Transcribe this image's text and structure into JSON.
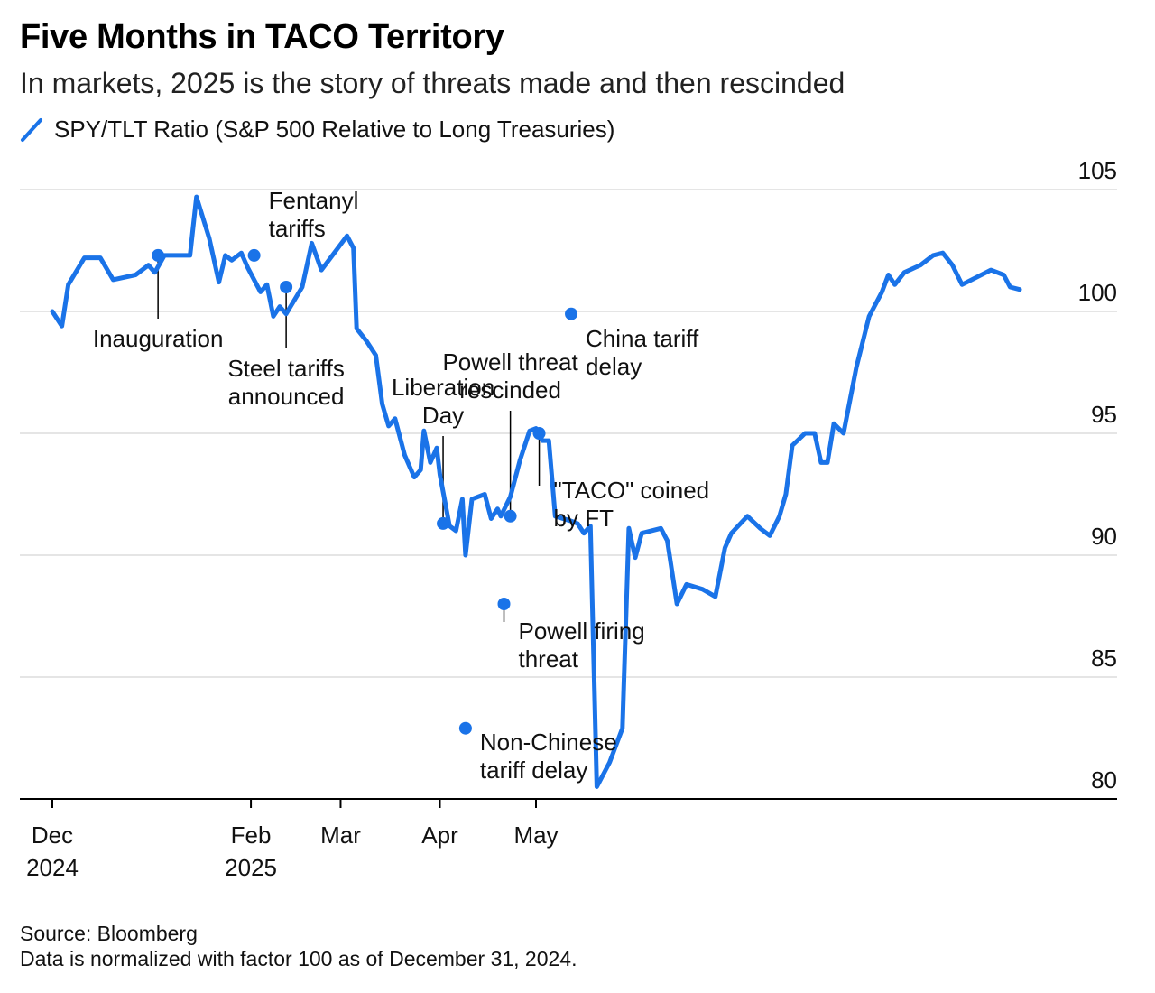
{
  "title": "Five Months in TACO Territory",
  "subtitle": "In markets, 2025 is the story of threats made and then rescinded",
  "legend_label": "SPY/TLT Ratio (S&P 500 Relative to Long Treasuries)",
  "source_line1": "Source: Bloomberg",
  "source_line2": "Data is normalized with factor 100 as of December 31, 2024.",
  "colors": {
    "line": "#1a73e8",
    "grid": "#e5e5e5",
    "axis": "#000000"
  },
  "chart_data": {
    "type": "line",
    "title": "Five Months in TACO Territory",
    "subtitle": "In markets, 2025 is the story of threats made and then rescinded",
    "ylabel": "",
    "ylim": [
      80,
      105
    ],
    "y_ticks": [
      80,
      85,
      90,
      95,
      100,
      105
    ],
    "y_position": "right",
    "grid": true,
    "x_ticks": [
      {
        "date": "2024-12-01",
        "line1": "Dec",
        "line2": "2024"
      },
      {
        "date": "2025-02-01",
        "line1": "Feb",
        "line2": "2025"
      },
      {
        "date": "2025-03-01",
        "line1": "Mar",
        "line2": ""
      },
      {
        "date": "2025-04-01",
        "line1": "Apr",
        "line2": ""
      },
      {
        "date": "2025-05-01",
        "line1": "May",
        "line2": ""
      }
    ],
    "series": [
      {
        "name": "SPY/TLT Ratio (S&P 500 Relative to Long Treasuries)",
        "points": [
          [
            "2024-12-01",
            100.0
          ],
          [
            "2024-12-04",
            99.4
          ],
          [
            "2024-12-06",
            101.1
          ],
          [
            "2024-12-11",
            102.2
          ],
          [
            "2024-12-16",
            102.2
          ],
          [
            "2024-12-20",
            101.3
          ],
          [
            "2024-12-27",
            101.5
          ],
          [
            "2024-12-31",
            101.9
          ],
          [
            "2025-01-02",
            101.6
          ],
          [
            "2025-01-05",
            102.3
          ],
          [
            "2025-01-08",
            102.3
          ],
          [
            "2025-01-13",
            102.3
          ],
          [
            "2025-01-15",
            104.7
          ],
          [
            "2025-01-19",
            103.0
          ],
          [
            "2025-01-22",
            101.2
          ],
          [
            "2025-01-24",
            102.3
          ],
          [
            "2025-01-26",
            102.1
          ],
          [
            "2025-01-29",
            102.4
          ],
          [
            "2025-01-31",
            101.8
          ],
          [
            "2025-02-04",
            100.8
          ],
          [
            "2025-02-06",
            101.1
          ],
          [
            "2025-02-08",
            99.8
          ],
          [
            "2025-02-10",
            100.2
          ],
          [
            "2025-02-12",
            99.9
          ],
          [
            "2025-02-17",
            101.0
          ],
          [
            "2025-02-20",
            102.8
          ],
          [
            "2025-02-23",
            101.7
          ],
          [
            "2025-02-27",
            102.4
          ],
          [
            "2025-03-03",
            103.1
          ],
          [
            "2025-03-05",
            102.6
          ],
          [
            "2025-03-06",
            99.3
          ],
          [
            "2025-03-09",
            98.8
          ],
          [
            "2025-03-12",
            98.2
          ],
          [
            "2025-03-14",
            96.2
          ],
          [
            "2025-03-16",
            95.3
          ],
          [
            "2025-03-18",
            95.6
          ],
          [
            "2025-03-21",
            94.1
          ],
          [
            "2025-03-24",
            93.2
          ],
          [
            "2025-03-26",
            93.5
          ],
          [
            "2025-03-27",
            95.1
          ],
          [
            "2025-03-29",
            93.8
          ],
          [
            "2025-03-31",
            94.4
          ],
          [
            "2025-04-01",
            93.3
          ],
          [
            "2025-04-04",
            91.2
          ],
          [
            "2025-04-06",
            91.0
          ],
          [
            "2025-04-08",
            92.3
          ],
          [
            "2025-04-09",
            90.0
          ],
          [
            "2025-04-11",
            92.3
          ],
          [
            "2025-04-15",
            92.5
          ],
          [
            "2025-04-17",
            91.5
          ],
          [
            "2025-04-19",
            91.9
          ],
          [
            "2025-04-20",
            91.6
          ],
          [
            "2025-04-23",
            92.4
          ],
          [
            "2025-04-26",
            93.9
          ],
          [
            "2025-04-29",
            95.1
          ],
          [
            "2025-05-01",
            95.2
          ],
          [
            "2025-05-03",
            94.7
          ],
          [
            "2025-05-05",
            94.7
          ],
          [
            "2025-05-07",
            91.6
          ],
          [
            "2025-05-12",
            91.4
          ],
          [
            "2025-05-14",
            91.3
          ],
          [
            "2025-05-16",
            90.9
          ],
          [
            "2025-05-18",
            91.2
          ],
          [
            "2025-05-20",
            80.5
          ],
          [
            "2025-05-24",
            81.5
          ],
          [
            "2025-05-28",
            82.9
          ],
          [
            "2025-05-30",
            91.1
          ],
          [
            "2025-06-01",
            89.9
          ],
          [
            "2025-06-03",
            90.9
          ],
          [
            "2025-06-09",
            91.1
          ],
          [
            "2025-06-11",
            90.6
          ],
          [
            "2025-06-14",
            88.0
          ],
          [
            "2025-06-17",
            88.8
          ],
          [
            "2025-06-22",
            88.6
          ],
          [
            "2025-06-26",
            88.3
          ],
          [
            "2025-06-29",
            90.3
          ],
          [
            "2025-07-01",
            90.9
          ],
          [
            "2025-07-06",
            91.6
          ],
          [
            "2025-07-10",
            91.1
          ],
          [
            "2025-07-13",
            90.8
          ],
          [
            "2025-07-16",
            91.6
          ],
          [
            "2025-07-18",
            92.5
          ],
          [
            "2025-07-20",
            94.5
          ],
          [
            "2025-07-24",
            95.0
          ],
          [
            "2025-07-27",
            95.0
          ],
          [
            "2025-07-29",
            93.8
          ],
          [
            "2025-07-31",
            93.8
          ],
          [
            "2025-08-02",
            95.4
          ],
          [
            "2025-08-05",
            95.0
          ],
          [
            "2025-08-09",
            97.7
          ],
          [
            "2025-08-13",
            99.8
          ],
          [
            "2025-08-17",
            100.8
          ],
          [
            "2025-08-19",
            101.5
          ],
          [
            "2025-08-21",
            101.1
          ],
          [
            "2025-08-24",
            101.6
          ],
          [
            "2025-08-29",
            101.9
          ],
          [
            "2025-09-02",
            102.3
          ],
          [
            "2025-09-05",
            102.4
          ],
          [
            "2025-09-08",
            101.9
          ],
          [
            "2025-09-11",
            101.1
          ],
          [
            "2025-09-20",
            101.7
          ],
          [
            "2025-09-24",
            101.5
          ],
          [
            "2025-09-26",
            101.0
          ],
          [
            "2025-09-29",
            100.9
          ]
        ]
      }
    ],
    "annotations": [
      {
        "key": "inauguration",
        "date": "2025-01-03",
        "value": 102.3,
        "lines": [
          "Inauguration"
        ]
      },
      {
        "key": "fentanyl-tariffs",
        "date": "2025-02-02",
        "value": 102.3,
        "lines": [
          "Fentanyl",
          "tariffs"
        ]
      },
      {
        "key": "steel-tariffs",
        "date": "2025-02-12",
        "value": 101.0,
        "lines": [
          "Steel tariffs",
          "announced"
        ]
      },
      {
        "key": "liberation-day",
        "date": "2025-04-02",
        "value": 91.3,
        "lines": [
          "Liberation",
          "Day"
        ]
      },
      {
        "key": "non-chinese-tariff-delay",
        "date": "2025-04-09",
        "value": 82.9,
        "lines": [
          "Non-Chinese",
          "tariff delay"
        ]
      },
      {
        "key": "powell-firing-threat",
        "date": "2025-04-21",
        "value": 88.0,
        "lines": [
          "Powell firing",
          "threat"
        ]
      },
      {
        "key": "powell-threat-rescinded",
        "date": "2025-04-23",
        "value": 91.6,
        "lines": [
          "Powell threat",
          "rescinded"
        ]
      },
      {
        "key": "taco-coined",
        "date": "2025-05-02",
        "value": 95.0,
        "lines": [
          "\"TACO\" coined",
          "by FT"
        ]
      },
      {
        "key": "china-tariff-delay",
        "date": "2025-05-12",
        "value": 99.9,
        "lines": [
          "China tariff",
          "delay"
        ]
      }
    ]
  }
}
